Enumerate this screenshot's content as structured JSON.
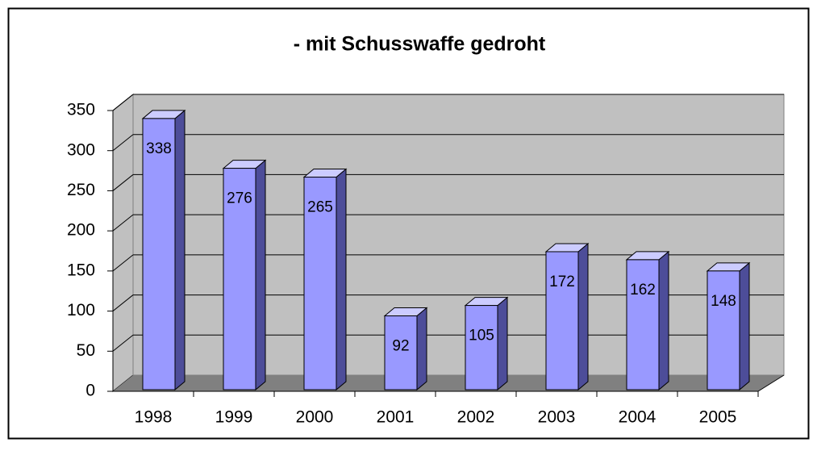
{
  "chart_data": {
    "type": "bar3d",
    "title": "- mit Schusswaffe gedroht",
    "categories": [
      "1998",
      "1999",
      "2000",
      "2001",
      "2002",
      "2003",
      "2004",
      "2005"
    ],
    "values": [
      338,
      276,
      265,
      92,
      105,
      172,
      162,
      148
    ],
    "color": "#9999ff",
    "ylim": [
      0,
      350
    ],
    "yticks": [
      0,
      50,
      100,
      150,
      200,
      250,
      300,
      350
    ],
    "grid": true
  }
}
